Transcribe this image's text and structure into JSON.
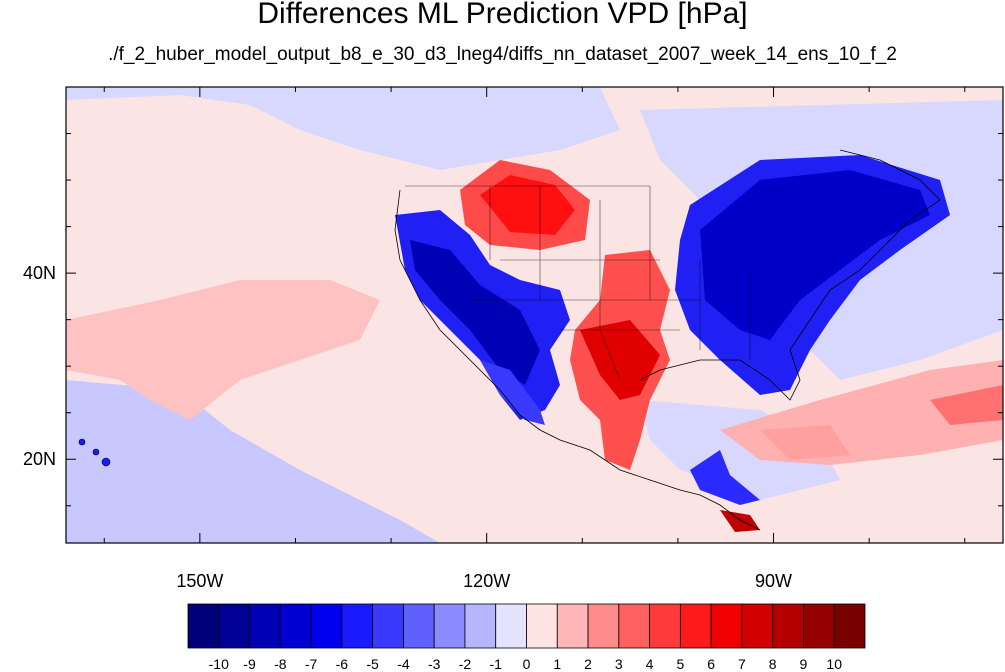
{
  "title": "Differences ML Prediction VPD [hPa]",
  "subtitle": "./f_2_huber_model_output_b8_e_30_d3_lneg4/diffs_nn_dataset_2007_week_14_ens_10_f_2",
  "map": {
    "lon_range": [
      -164,
      -66
    ],
    "lat_range": [
      11,
      60
    ],
    "lon_ticks": [
      {
        "value": -150,
        "label": "150W"
      },
      {
        "value": -120,
        "label": "120W"
      },
      {
        "value": -90,
        "label": "90W"
      }
    ],
    "lat_ticks": [
      {
        "value": 40,
        "label": "40N"
      },
      {
        "value": 20,
        "label": "20N"
      }
    ],
    "background_color": "#fbe4e4"
  },
  "colorbar": {
    "labels": [
      "-10",
      "-9",
      "-8",
      "-7",
      "-6",
      "-5",
      "-4",
      "-3",
      "-2",
      "-1",
      "0",
      "1",
      "2",
      "3",
      "4",
      "5",
      "6",
      "7",
      "8",
      "9",
      "10"
    ],
    "colors": [
      "#00007a",
      "#000096",
      "#0000b4",
      "#0000d2",
      "#0000f0",
      "#1a1aff",
      "#3a3aff",
      "#6060ff",
      "#8c8cff",
      "#b6b6ff",
      "#e4e4ff",
      "#ffe4e4",
      "#ffb6b6",
      "#ff8c8c",
      "#ff6060",
      "#ff3a3a",
      "#ff1a1a",
      "#f00000",
      "#d20000",
      "#b40000",
      "#960000",
      "#7a0000"
    ]
  }
}
